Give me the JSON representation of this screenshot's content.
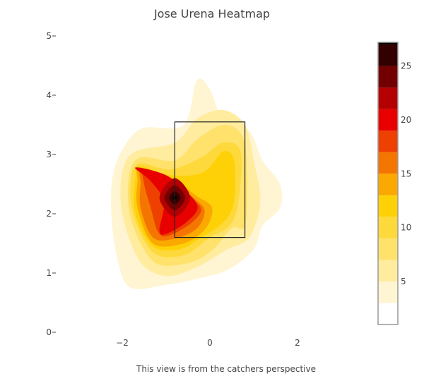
{
  "chart_data": {
    "type": "heatmap",
    "title": "Jose Urena Heatmap",
    "annotation": "This view is from the catchers perspective",
    "xlabel": "",
    "ylabel": "",
    "xlim": [
      -3.5,
      3.5
    ],
    "ylim": [
      0,
      5
    ],
    "x_ticks": [
      -2,
      0,
      2
    ],
    "x_tick_labels": [
      "−2",
      "0",
      "2"
    ],
    "y_ticks": [
      0,
      1,
      2,
      3,
      4,
      5
    ],
    "y_tick_labels": [
      "0",
      "1",
      "2",
      "3",
      "4",
      "5"
    ],
    "grid": false,
    "strike_zone": {
      "x": [
        -0.8,
        0.8
      ],
      "y": [
        1.6,
        3.55
      ]
    },
    "colorbar": {
      "range": [
        1,
        27.2
      ],
      "ticks": [
        5,
        10,
        15,
        20,
        25
      ],
      "tick_labels": [
        "5",
        "10",
        "15",
        "20",
        "25"
      ],
      "levels": [
        1,
        3,
        5,
        7,
        9,
        11,
        13,
        15,
        17,
        19,
        21,
        23,
        25,
        27
      ],
      "colors": [
        "#ffffff",
        "#fff5d2",
        "#ffec9f",
        "#ffe26c",
        "#fed93b",
        "#fed107",
        "#fba800",
        "#f47600",
        "#ee4000",
        "#e80000",
        "#b40000",
        "#730000",
        "#330000",
        "#000000"
      ]
    },
    "peak": {
      "x": -0.8,
      "y": 2.27,
      "value": 27
    },
    "contours": [
      {
        "level": 3,
        "color": "#fff5d2",
        "points": [
          [
            -1.9,
            3.2
          ],
          [
            -1.5,
            3.45
          ],
          [
            -0.6,
            3.5
          ],
          [
            -0.3,
            4.25
          ],
          [
            0,
            4.1
          ],
          [
            0.3,
            3.6
          ],
          [
            0.9,
            3.4
          ],
          [
            1.2,
            2.9
          ],
          [
            1.6,
            2.5
          ],
          [
            1.6,
            2.1
          ],
          [
            1.2,
            1.8
          ],
          [
            1.0,
            1.4
          ],
          [
            0.4,
            1.05
          ],
          [
            -0.3,
            0.9
          ],
          [
            -1.0,
            0.8
          ],
          [
            -1.8,
            0.75
          ],
          [
            -2.1,
            1.2
          ],
          [
            -2.25,
            2.0
          ],
          [
            -2.2,
            2.7
          ]
        ]
      },
      {
        "level": 5,
        "color": "#ffec9f",
        "points": [
          [
            -1.7,
            3.05
          ],
          [
            -0.8,
            3.2
          ],
          [
            -0.3,
            3.6
          ],
          [
            0.3,
            3.75
          ],
          [
            0.8,
            3.5
          ],
          [
            1.0,
            2.9
          ],
          [
            1.15,
            2.2
          ],
          [
            0.9,
            1.6
          ],
          [
            0.4,
            1.4
          ],
          [
            -0.3,
            1.1
          ],
          [
            -1.0,
            0.95
          ],
          [
            -1.6,
            1.2
          ],
          [
            -2.0,
            2.0
          ],
          [
            -2.0,
            2.7
          ]
        ]
      },
      {
        "level": 7,
        "color": "#ffe26c",
        "points": [
          [
            -1.6,
            2.95
          ],
          [
            -0.8,
            2.9
          ],
          [
            -0.3,
            3.25
          ],
          [
            0.3,
            3.5
          ],
          [
            0.75,
            3.3
          ],
          [
            0.85,
            2.6
          ],
          [
            0.8,
            1.8
          ],
          [
            0.5,
            1.75
          ],
          [
            0,
            1.35
          ],
          [
            -0.6,
            1.15
          ],
          [
            -1.3,
            1.2
          ],
          [
            -1.8,
            1.9
          ],
          [
            -1.85,
            2.6
          ]
        ]
      },
      {
        "level": 9,
        "color": "#fed93b",
        "points": [
          [
            -1.6,
            2.85
          ],
          [
            -0.9,
            2.75
          ],
          [
            -0.2,
            2.95
          ],
          [
            0.3,
            3.2
          ],
          [
            0.7,
            3.05
          ],
          [
            0.65,
            2.2
          ],
          [
            0.45,
            1.8
          ],
          [
            0.0,
            1.6
          ],
          [
            -0.6,
            1.3
          ],
          [
            -1.3,
            1.35
          ],
          [
            -1.75,
            2.0
          ],
          [
            -1.8,
            2.6
          ]
        ]
      },
      {
        "level": 11,
        "color": "#fed107",
        "points": [
          [
            -1.6,
            2.8
          ],
          [
            -0.9,
            2.65
          ],
          [
            -0.15,
            2.7
          ],
          [
            0.3,
            3.05
          ],
          [
            0.55,
            2.9
          ],
          [
            0.55,
            2.2
          ],
          [
            0.3,
            1.85
          ],
          [
            -0.2,
            1.6
          ],
          [
            -0.7,
            1.4
          ],
          [
            -1.3,
            1.45
          ],
          [
            -1.7,
            2.0
          ],
          [
            -1.7,
            2.6
          ]
        ]
      },
      {
        "level": 13,
        "color": "#fba800",
        "points": [
          [
            -1.6,
            2.75
          ],
          [
            -0.9,
            2.6
          ],
          [
            -0.3,
            2.3
          ],
          [
            0.05,
            2.1
          ],
          [
            -0.1,
            1.75
          ],
          [
            -0.6,
            1.5
          ],
          [
            -1.3,
            1.5
          ],
          [
            -1.65,
            2.1
          ],
          [
            -1.65,
            2.55
          ]
        ]
      },
      {
        "level": 15,
        "color": "#f47600",
        "points": [
          [
            -1.55,
            2.72
          ],
          [
            -0.9,
            2.55
          ],
          [
            -0.35,
            2.25
          ],
          [
            -0.12,
            2.05
          ],
          [
            -0.3,
            1.75
          ],
          [
            -0.8,
            1.58
          ],
          [
            -1.3,
            1.6
          ],
          [
            -1.58,
            2.1
          ],
          [
            -1.58,
            2.5
          ]
        ]
      },
      {
        "level": 17,
        "color": "#ee4000",
        "points": [
          [
            -1.5,
            2.75
          ],
          [
            -0.95,
            2.55
          ],
          [
            -0.4,
            2.25
          ],
          [
            -0.2,
            2.05
          ],
          [
            -0.5,
            1.8
          ],
          [
            -1.0,
            1.62
          ],
          [
            -1.2,
            1.72
          ],
          [
            -1.35,
            2.1
          ],
          [
            -1.5,
            2.5
          ]
        ]
      },
      {
        "level": 19,
        "color": "#e80000",
        "points": [
          [
            -1.7,
            2.78
          ],
          [
            -1.0,
            2.65
          ],
          [
            -0.5,
            2.35
          ],
          [
            -0.28,
            2.1
          ],
          [
            -0.55,
            1.85
          ],
          [
            -1.0,
            1.66
          ],
          [
            -1.15,
            1.72
          ],
          [
            -1.05,
            2.2
          ],
          [
            -1.35,
            2.55
          ]
        ]
      },
      {
        "level": 21,
        "color": "#b40000",
        "points": [
          [
            -0.8,
            2.6
          ],
          [
            -0.45,
            2.27
          ],
          [
            -0.8,
            1.95
          ],
          [
            -1.15,
            2.27
          ]
        ]
      },
      {
        "level": 23,
        "color": "#730000",
        "points": [
          [
            -0.8,
            2.48
          ],
          [
            -0.56,
            2.27
          ],
          [
            -0.8,
            2.06
          ],
          [
            -1.04,
            2.27
          ]
        ]
      },
      {
        "level": 25,
        "color": "#330000",
        "points": [
          [
            -0.8,
            2.38
          ],
          [
            -0.67,
            2.27
          ],
          [
            -0.8,
            2.16
          ],
          [
            -0.93,
            2.27
          ]
        ]
      },
      {
        "level": 27,
        "color": "#000000",
        "points": [
          [
            -0.8,
            2.31
          ],
          [
            -0.75,
            2.27
          ],
          [
            -0.8,
            2.23
          ],
          [
            -0.85,
            2.27
          ]
        ]
      }
    ]
  }
}
